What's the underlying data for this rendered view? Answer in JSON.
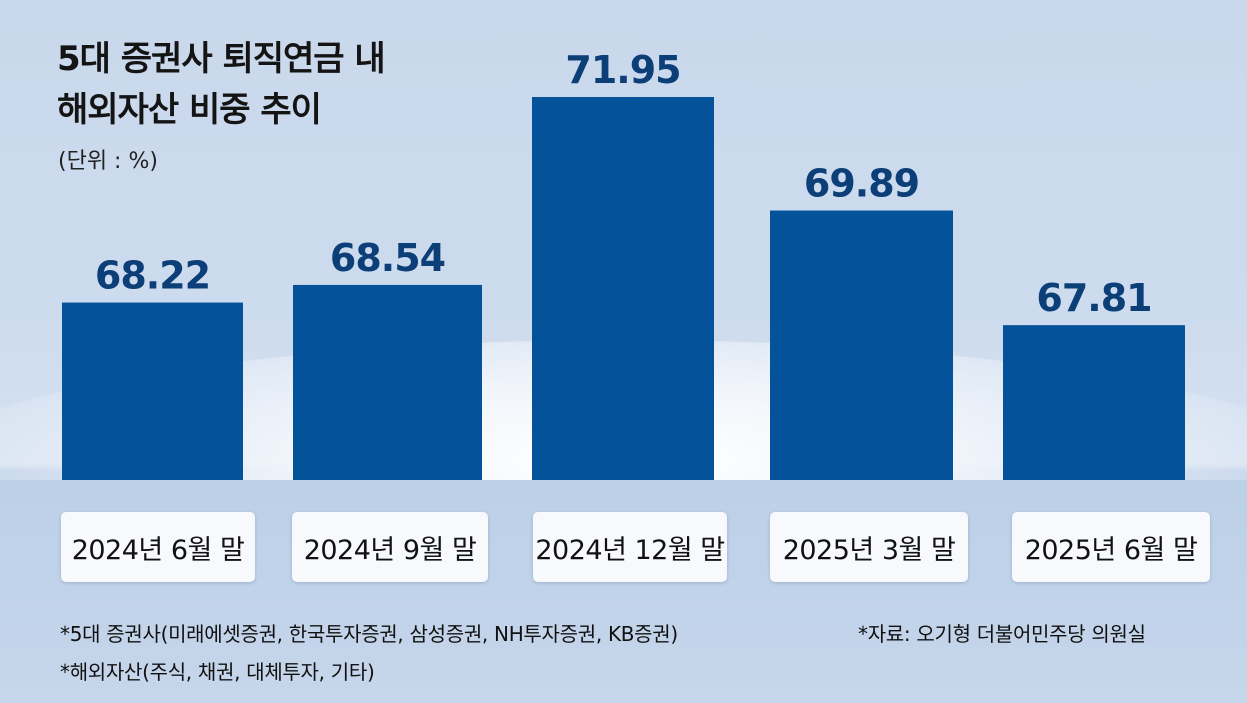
{
  "title_line1": "5대 증권사 퇴직연금 내",
  "title_line2": "해외자산 비중 추이",
  "unit": "(단위 : %)",
  "chart_data": {
    "type": "bar",
    "categories": [
      "2024년 6월 말",
      "2024년 9월 말",
      "2024년 12월 말",
      "2025년 3월 말",
      "2025년 6월 말"
    ],
    "values": [
      68.22,
      68.54,
      71.95,
      69.89,
      67.81
    ],
    "value_labels": [
      "68.22",
      "68.54",
      "71.95",
      "69.89",
      "67.81"
    ],
    "bar_color": "#03529a",
    "label_color": "#0c3e78",
    "xlabel": "",
    "ylabel": "",
    "grid": false,
    "legend": "none"
  },
  "footnotes": {
    "members": "*5대 증권사(미래에셋증권, 한국투자증권, 삼성증권, NH투자증권, KB증권)",
    "source": "*자료: 오기형 더불어민주당 의원실",
    "assets": "*해외자산(주식, 채권, 대체투자, 기타)"
  }
}
